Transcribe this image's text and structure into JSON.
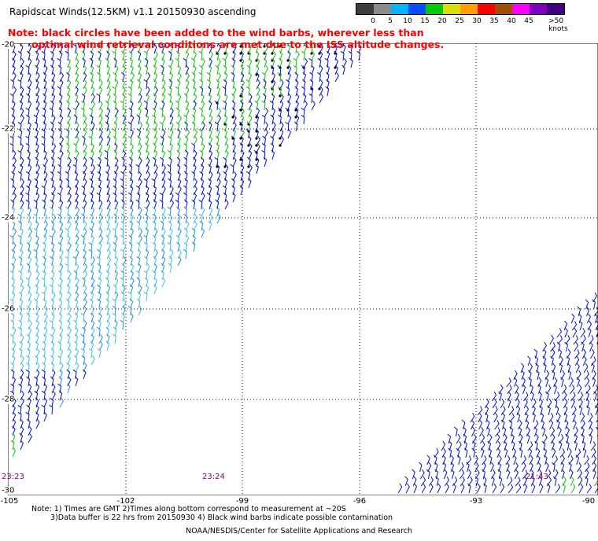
{
  "title": "Rapidscat Winds(12.5KM) v1.1 20150930 ascending",
  "note_lines": [
    "Note: black circles have been added to the wind barbs, wherever less than",
    "optimal wind retrieval conditions are met due to the ISS altitude changes."
  ],
  "legend": {
    "labels": [
      "0",
      "5",
      "10",
      "15",
      "20",
      "25",
      "30",
      "35",
      "40",
      "45",
      ">50 knots"
    ],
    "colors": [
      "#3c3c3c",
      "#8c8c8c",
      "#00b4ff",
      "#0050ff",
      "#00cc00",
      "#dddd00",
      "#ffa000",
      "#ff0000",
      "#a05000",
      "#ff00ff",
      "#8000c0",
      "#400080"
    ]
  },
  "axes": {
    "y_labels": [
      "-20",
      "-22",
      "-24",
      "-26",
      "-28",
      "-30"
    ],
    "x_labels": [
      "-105",
      "-102",
      "-99",
      "-96",
      "-93",
      "-90"
    ]
  },
  "times": [
    "23:23",
    "23:24",
    "21:43"
  ],
  "footnote_lines": [
    "Note: 1) Times are GMT 2)Times along bottom correspond to measurement at ~20S",
    "3)Data buffer is 22 hrs from 20150930 4) Black wind barbs indicate possible contamination"
  ],
  "credit": "NOAA/NESDIS/Center for Satellite Applications and Research",
  "colors": {
    "barb_light": "#40c0e0",
    "barb_mid": "#2090e0",
    "barb_dark": "#0010c8",
    "barb_green": "#10c010",
    "flag_black": "#000000",
    "grid": "#000000",
    "time_label": "#800080",
    "note": "#ff0000"
  }
}
